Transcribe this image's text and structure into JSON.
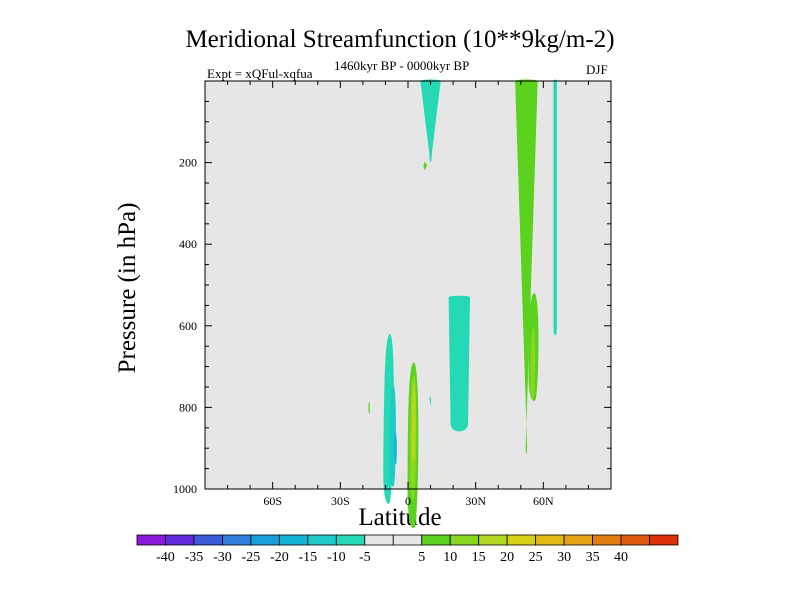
{
  "chart_data": {
    "type": "contour",
    "title": "Meridional Streamfunction (10**9kg/m-2)",
    "experiment": "Expt = xQFul-xqfua",
    "subtitle": "1460kyr BP - 0000kyr BP",
    "season": "DJF",
    "xlabel": "Latitude",
    "ylabel": "Pressure (in hPa)",
    "xlim": [
      -90,
      90
    ],
    "ylim": [
      1000,
      0
    ],
    "x_ticks": [
      {
        "value": -60,
        "label": "60S"
      },
      {
        "value": -30,
        "label": "30S"
      },
      {
        "value": 0,
        "label": "0"
      },
      {
        "value": 30,
        "label": "30N"
      },
      {
        "value": 60,
        "label": "60N"
      }
    ],
    "y_ticks": [
      {
        "value": 200,
        "label": "200"
      },
      {
        "value": 400,
        "label": "400"
      },
      {
        "value": 600,
        "label": "600"
      },
      {
        "value": 800,
        "label": "800"
      },
      {
        "value": 1000,
        "label": "1000"
      }
    ],
    "background_color": "#e6e6e6",
    "colorbar": {
      "colors": [
        "#8b19dc",
        "#5f2ad9",
        "#3c5bd9",
        "#2e7ede",
        "#189fdb",
        "#12b5d3",
        "#1fcbc8",
        "#24d9b3",
        "#e6e6e6",
        "#e6e6e6",
        "#5ad21e",
        "#8ad71f",
        "#b4d722",
        "#d7d114",
        "#e6b814",
        "#e6a014",
        "#e07f10",
        "#df5a10",
        "#db3009"
      ],
      "labels": [
        "-40",
        "-35",
        "-30",
        "-25",
        "-20",
        "-15",
        "-10",
        "-5",
        "5",
        "10",
        "15",
        "20",
        "25",
        "30",
        "35",
        "40"
      ]
    },
    "features": [
      {
        "name": "n-low-cyan-cell",
        "value": -5,
        "color": "#24d9b3",
        "shape": "ellipse",
        "lat": -8,
        "p": 825,
        "dlat": 2.3,
        "dp": 410,
        "skew": -1.2
      },
      {
        "name": "s-low-blue-cell",
        "value": -10,
        "color": "#1fcbc8",
        "shape": "ellipse",
        "lat": -6.5,
        "p": 868,
        "dlat": 1.4,
        "dp": 245,
        "skew": -0.4
      },
      {
        "name": "s-low-deep-blue-cell",
        "value": -15,
        "color": "#12b5d3",
        "shape": "ellipse",
        "lat": -5.5,
        "p": 900,
        "dlat": 0.6,
        "dp": 75,
        "skew": 0
      },
      {
        "name": "equator-green-cell",
        "value": 5,
        "color": "#5ad21e",
        "shape": "ellipse",
        "lat": 2.6,
        "p": 890,
        "dlat": 2.4,
        "dp": 400,
        "skew": -0.6
      },
      {
        "name": "equator-lime-cell",
        "value": 10,
        "color": "#8ad71f",
        "shape": "ellipse",
        "lat": 2.6,
        "p": 870,
        "dlat": 1.4,
        "dp": 300,
        "skew": -0.6
      },
      {
        "name": "equator-yellow-core",
        "value": 15,
        "color": "#b4d722",
        "shape": "ellipse",
        "lat": 2.7,
        "p": 838,
        "dlat": 0.9,
        "dp": 190,
        "skew": -0.3
      },
      {
        "name": "south-ne-green-blob",
        "value": 5,
        "color": "#5ad21e",
        "shape": "ellipse",
        "lat": -17.2,
        "p": 800,
        "dlat": 0.3,
        "dp": 28,
        "skew": 0
      },
      {
        "name": "n-ne-green-tongue-left",
        "value": 5,
        "color": "#5ad21e",
        "shape": "ellipse",
        "lat": 56,
        "p": 650,
        "dlat": 2.2,
        "dp": 260,
        "skew": -0.5
      },
      {
        "name": "n-ne-green-tongue-right",
        "value": 10,
        "color": "#8ad71f",
        "shape": "ellipse",
        "lat": 55.6,
        "p": 690,
        "dlat": 1.0,
        "dp": 170,
        "skew": -0.5
      }
    ]
  }
}
